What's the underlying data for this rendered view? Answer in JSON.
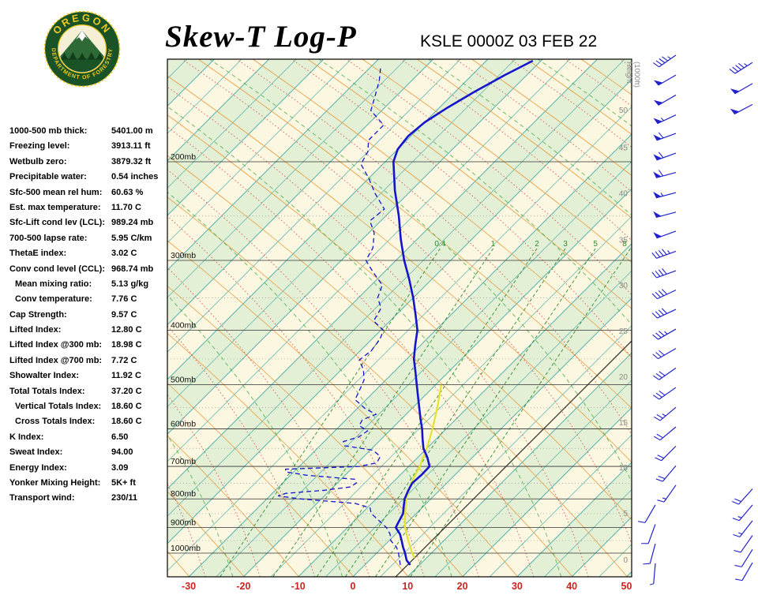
{
  "header": {
    "title": "Skew-T Log-P",
    "station": "KSLE 0000Z 03 FEB 22",
    "logo": {
      "arc_top": "OREGON",
      "arc_bottom": "DEPARTMENT OF FORESTRY"
    }
  },
  "stats": {
    "rows": [
      {
        "label": "1000-500 mb thick:",
        "value": "5401.00 m",
        "indent": false
      },
      {
        "label": "Freezing level:",
        "value": "3913.11 ft",
        "indent": false
      },
      {
        "label": "Wetbulb zero:",
        "value": "3879.32 ft",
        "indent": false
      },
      {
        "label": "Precipitable water:",
        "value": "0.54 inches",
        "indent": false
      },
      {
        "label": "Sfc-500 mean rel hum:",
        "value": "60.63 %",
        "indent": false
      },
      {
        "label": "Est. max temperature:",
        "value": "11.70 C",
        "indent": false
      },
      {
        "label": "Sfc-Lift cond lev (LCL):",
        "value": "989.24 mb",
        "indent": false
      },
      {
        "label": "700-500 lapse rate:",
        "value": "5.95 C/km",
        "indent": false
      },
      {
        "label": "ThetaE index:",
        "value": "3.02 C",
        "indent": false
      },
      {
        "label": "Conv cond level (CCL):",
        "value": "968.74 mb",
        "indent": false
      },
      {
        "label": "Mean mixing ratio:",
        "value": "5.13 g/kg",
        "indent": true
      },
      {
        "label": "Conv temperature:",
        "value": "7.76 C",
        "indent": true
      },
      {
        "label": "Cap Strength:",
        "value": "9.57 C",
        "indent": false
      },
      {
        "label": "Lifted Index:",
        "value": "12.80 C",
        "indent": false
      },
      {
        "label": "Lifted Index @300 mb:",
        "value": "18.98 C",
        "indent": false
      },
      {
        "label": "Lifted Index @700 mb:",
        "value": "7.72 C",
        "indent": false
      },
      {
        "label": "Showalter Index:",
        "value": "11.92 C",
        "indent": false
      },
      {
        "label": "Total Totals Index:",
        "value": "37.20 C",
        "indent": false
      },
      {
        "label": "Vertical Totals Index:",
        "value": "18.60 C",
        "indent": true
      },
      {
        "label": "Cross Totals Index:",
        "value": "18.60 C",
        "indent": true
      },
      {
        "label": "K Index:",
        "value": "6.50",
        "indent": false
      },
      {
        "label": "Sweat Index:",
        "value": "94.00",
        "indent": false
      },
      {
        "label": "Energy Index:",
        "value": "3.09",
        "indent": false
      },
      {
        "label": "Yonker Mixing Height:",
        "value": "5K+ ft",
        "indent": false
      },
      {
        "label": "Transport wind:",
        "value": "230/11",
        "indent": false
      }
    ]
  },
  "chart_data": {
    "type": "line",
    "subtype": "skew-t-log-p-sounding",
    "title": "Skew-T Log-P",
    "temp_axis": {
      "unit": "C",
      "ticks": [
        -30,
        -20,
        -10,
        0,
        10,
        20,
        30,
        40,
        50
      ],
      "range": [
        -30,
        50
      ]
    },
    "pressure_levels": [
      {
        "p": 200,
        "label": "200mb"
      },
      {
        "p": 300,
        "label": "300mb"
      },
      {
        "p": 400,
        "label": "400mb"
      },
      {
        "p": 500,
        "label": "500mb"
      },
      {
        "p": 600,
        "label": "600mb"
      },
      {
        "p": 700,
        "label": "700mb"
      },
      {
        "p": 800,
        "label": "800mb"
      },
      {
        "p": 900,
        "label": "900mb"
      },
      {
        "p": 1000,
        "label": "1000mb"
      }
    ],
    "pressure_minor": [
      250,
      350,
      450,
      550,
      650,
      750,
      850,
      950
    ],
    "height_axis": {
      "title_lines": [
        "Height",
        "(1000ft)"
      ],
      "ticks": [
        {
          "h": 0,
          "p": 1030
        },
        {
          "h": 5,
          "p": 850
        },
        {
          "h": 10,
          "p": 704
        },
        {
          "h": 15,
          "p": 585
        },
        {
          "h": 20,
          "p": 485
        },
        {
          "h": 25,
          "p": 402
        },
        {
          "h": 30,
          "p": 333
        },
        {
          "h": 35,
          "p": 276
        },
        {
          "h": 40,
          "p": 228
        },
        {
          "h": 45,
          "p": 189
        },
        {
          "h": 50,
          "p": 162
        }
      ]
    },
    "mixing_ratio_lines": [
      {
        "label": "0.4",
        "value": 0.4,
        "td1000": -24.3
      },
      {
        "label": "1",
        "value": 1,
        "td1000": -14.6
      },
      {
        "label": "2",
        "value": 2,
        "td1000": -6.6
      },
      {
        "label": "3",
        "value": 3,
        "td1000": -1.4
      },
      {
        "label": "5",
        "value": 5,
        "td1000": 4.1
      },
      {
        "label": "8",
        "value": 8,
        "td1000": 10.5
      }
    ],
    "highlight_isotherm_c": 7.8,
    "temperature_profile": [
      [
        1050,
        8.3
      ],
      [
        1030,
        6.8
      ],
      [
        1000,
        5.2
      ],
      [
        975,
        3.7
      ],
      [
        950,
        2.3
      ],
      [
        925,
        0.8
      ],
      [
        900,
        -1.2
      ],
      [
        875,
        -1.8
      ],
      [
        850,
        -2.4
      ],
      [
        825,
        -3.6
      ],
      [
        800,
        -4.8
      ],
      [
        775,
        -5.6
      ],
      [
        750,
        -6.3
      ],
      [
        725,
        -6.1
      ],
      [
        700,
        -6.2
      ],
      [
        675,
        -8.2
      ],
      [
        650,
        -10.6
      ],
      [
        625,
        -12.5
      ],
      [
        600,
        -14.4
      ],
      [
        575,
        -16.6
      ],
      [
        550,
        -18.8
      ],
      [
        525,
        -21.1
      ],
      [
        500,
        -23.5
      ],
      [
        475,
        -26.0
      ],
      [
        450,
        -28.7
      ],
      [
        425,
        -31.0
      ],
      [
        400,
        -33.3
      ],
      [
        375,
        -36.5
      ],
      [
        350,
        -40.0
      ],
      [
        325,
        -44.0
      ],
      [
        300,
        -48.5
      ],
      [
        275,
        -53.0
      ],
      [
        250,
        -57.6
      ],
      [
        225,
        -63.0
      ],
      [
        200,
        -68.5
      ],
      [
        190,
        -70.0
      ],
      [
        180,
        -70.5
      ],
      [
        170,
        -70.0
      ],
      [
        160,
        -68.5
      ],
      [
        150,
        -66.5
      ],
      [
        140,
        -64.0
      ],
      [
        132,
        -61.5
      ]
    ],
    "dewpoint_profile": [
      [
        1050,
        6.5
      ],
      [
        1000,
        4.0
      ],
      [
        975,
        2.5
      ],
      [
        950,
        0.3
      ],
      [
        925,
        -1.0
      ],
      [
        900,
        -2.9
      ],
      [
        875,
        -5.5
      ],
      [
        850,
        -8.2
      ],
      [
        830,
        -9.5
      ],
      [
        815,
        -13.0
      ],
      [
        800,
        -24.0
      ],
      [
        790,
        -28.5
      ],
      [
        782,
        -27.5
      ],
      [
        772,
        -21.0
      ],
      [
        762,
        -17.0
      ],
      [
        750,
        -16.5
      ],
      [
        738,
        -17.5
      ],
      [
        726,
        -27.0
      ],
      [
        716,
        -31.5
      ],
      [
        708,
        -32.0
      ],
      [
        700,
        -19.0
      ],
      [
        690,
        -16.5
      ],
      [
        672,
        -17.0
      ],
      [
        655,
        -19.5
      ],
      [
        643,
        -25.5
      ],
      [
        632,
        -26.5
      ],
      [
        620,
        -24.5
      ],
      [
        605,
        -24.0
      ],
      [
        592,
        -26.5
      ],
      [
        578,
        -27.0
      ],
      [
        565,
        -25.5
      ],
      [
        552,
        -28.5
      ],
      [
        532,
        -32.0
      ],
      [
        510,
        -33.0
      ],
      [
        490,
        -34.0
      ],
      [
        470,
        -36.0
      ],
      [
        452,
        -38.5
      ],
      [
        435,
        -38.0
      ],
      [
        415,
        -38.5
      ],
      [
        400,
        -39.5
      ],
      [
        385,
        -43.0
      ],
      [
        365,
        -44.0
      ],
      [
        350,
        -46.5
      ],
      [
        332,
        -48.0
      ],
      [
        315,
        -52.0
      ],
      [
        300,
        -55.5
      ],
      [
        285,
        -56.5
      ],
      [
        268,
        -59.0
      ],
      [
        255,
        -62.0
      ],
      [
        243,
        -61.5
      ],
      [
        228,
        -66.0
      ],
      [
        214,
        -70.0
      ],
      [
        202,
        -74.0
      ],
      [
        192,
        -75.0
      ],
      [
        183,
        -77.0
      ],
      [
        172,
        -77.0
      ],
      [
        162,
        -82.0
      ],
      [
        152,
        -84.0
      ],
      [
        143,
        -86.0
      ],
      [
        136,
        -88.0
      ]
    ],
    "parcel_profile": [
      [
        1020,
        7.8
      ],
      [
        1000,
        6.5
      ],
      [
        950,
        3.5
      ],
      [
        900,
        0.5
      ],
      [
        850,
        -2.0
      ],
      [
        800,
        -4.5
      ],
      [
        750,
        -6.5
      ],
      [
        700,
        -8.0
      ],
      [
        650,
        -10.0
      ],
      [
        600,
        -12.5
      ],
      [
        550,
        -15.5
      ],
      [
        500,
        -19.0
      ]
    ],
    "winds": [
      {
        "p": 1043,
        "dir": 185,
        "spd": 5,
        "col": 0
      },
      {
        "p": 962,
        "dir": 195,
        "spd": 8,
        "col": 0
      },
      {
        "p": 888,
        "dir": 200,
        "spd": 10,
        "col": 0
      },
      {
        "p": 820,
        "dir": 210,
        "spd": 12,
        "col": 0
      },
      {
        "p": 756,
        "dir": 215,
        "spd": 15,
        "col": 1
      },
      {
        "p": 698,
        "dir": 220,
        "spd": 18,
        "col": 1
      },
      {
        "p": 644,
        "dir": 225,
        "spd": 20,
        "col": 1
      },
      {
        "p": 595,
        "dir": 230,
        "spd": 22,
        "col": 1
      },
      {
        "p": 549,
        "dir": 230,
        "spd": 25,
        "col": 1
      },
      {
        "p": 506,
        "dir": 235,
        "spd": 28,
        "col": 1
      },
      {
        "p": 467,
        "dir": 235,
        "spd": 30,
        "col": 1
      },
      {
        "p": 431,
        "dir": 240,
        "spd": 32,
        "col": 1
      },
      {
        "p": 398,
        "dir": 240,
        "spd": 35,
        "col": 1
      },
      {
        "p": 367,
        "dir": 245,
        "spd": 38,
        "col": 1
      },
      {
        "p": 339,
        "dir": 245,
        "spd": 40,
        "col": 1
      },
      {
        "p": 313,
        "dir": 250,
        "spd": 42,
        "col": 1
      },
      {
        "p": 289,
        "dir": 250,
        "spd": 45,
        "col": 1
      },
      {
        "p": 266,
        "dir": 250,
        "spd": 48,
        "col": 1
      },
      {
        "p": 246,
        "dir": 255,
        "spd": 50,
        "col": 1
      },
      {
        "p": 227,
        "dir": 255,
        "spd": 55,
        "col": 1
      },
      {
        "p": 209,
        "dir": 255,
        "spd": 58,
        "col": 1
      },
      {
        "p": 193,
        "dir": 250,
        "spd": 60,
        "col": 1
      },
      {
        "p": 178,
        "dir": 250,
        "spd": 60,
        "col": 1
      },
      {
        "p": 165,
        "dir": 245,
        "spd": 55,
        "col": 1
      },
      {
        "p": 152,
        "dir": 240,
        "spd": 52,
        "col": 1
      },
      {
        "p": 140,
        "dir": 240,
        "spd": 48,
        "col": 1
      },
      {
        "p": 129,
        "dir": 235,
        "spd": 45,
        "col": 1
      },
      {
        "p": 1040,
        "dir": 210,
        "spd": 10,
        "col": 2
      },
      {
        "p": 985,
        "dir": 212,
        "spd": 10,
        "col": 2
      },
      {
        "p": 930,
        "dir": 215,
        "spd": 12,
        "col": 2
      },
      {
        "p": 875,
        "dir": 218,
        "spd": 15,
        "col": 2
      },
      {
        "p": 820,
        "dir": 220,
        "spd": 15,
        "col": 2
      },
      {
        "p": 768,
        "dir": 222,
        "spd": 18,
        "col": 2
      },
      {
        "p": 158,
        "dir": 242,
        "spd": 50,
        "col": 2
      },
      {
        "p": 145,
        "dir": 240,
        "spd": 48,
        "col": 2
      },
      {
        "p": 133,
        "dir": 238,
        "spd": 45,
        "col": 2
      }
    ],
    "colors": {
      "profile": "#1515cc",
      "parcel": "#e3e32e",
      "isotherm": "#2fa3a3",
      "dry_adiabat": "#e89b3e",
      "moist_adiabat": "#dd5555",
      "green_curve": "#44aa44",
      "mixing": "#2e8b2e",
      "temp_axis": "#cc2222",
      "barb": "#2222cc",
      "band_cream": "#fbf7e0",
      "band_green": "#e3f0d5",
      "pressure_line": "#333333",
      "minor_line": "#999999",
      "height_label": "#8a8a8a",
      "highlight_line": "#222222"
    }
  }
}
